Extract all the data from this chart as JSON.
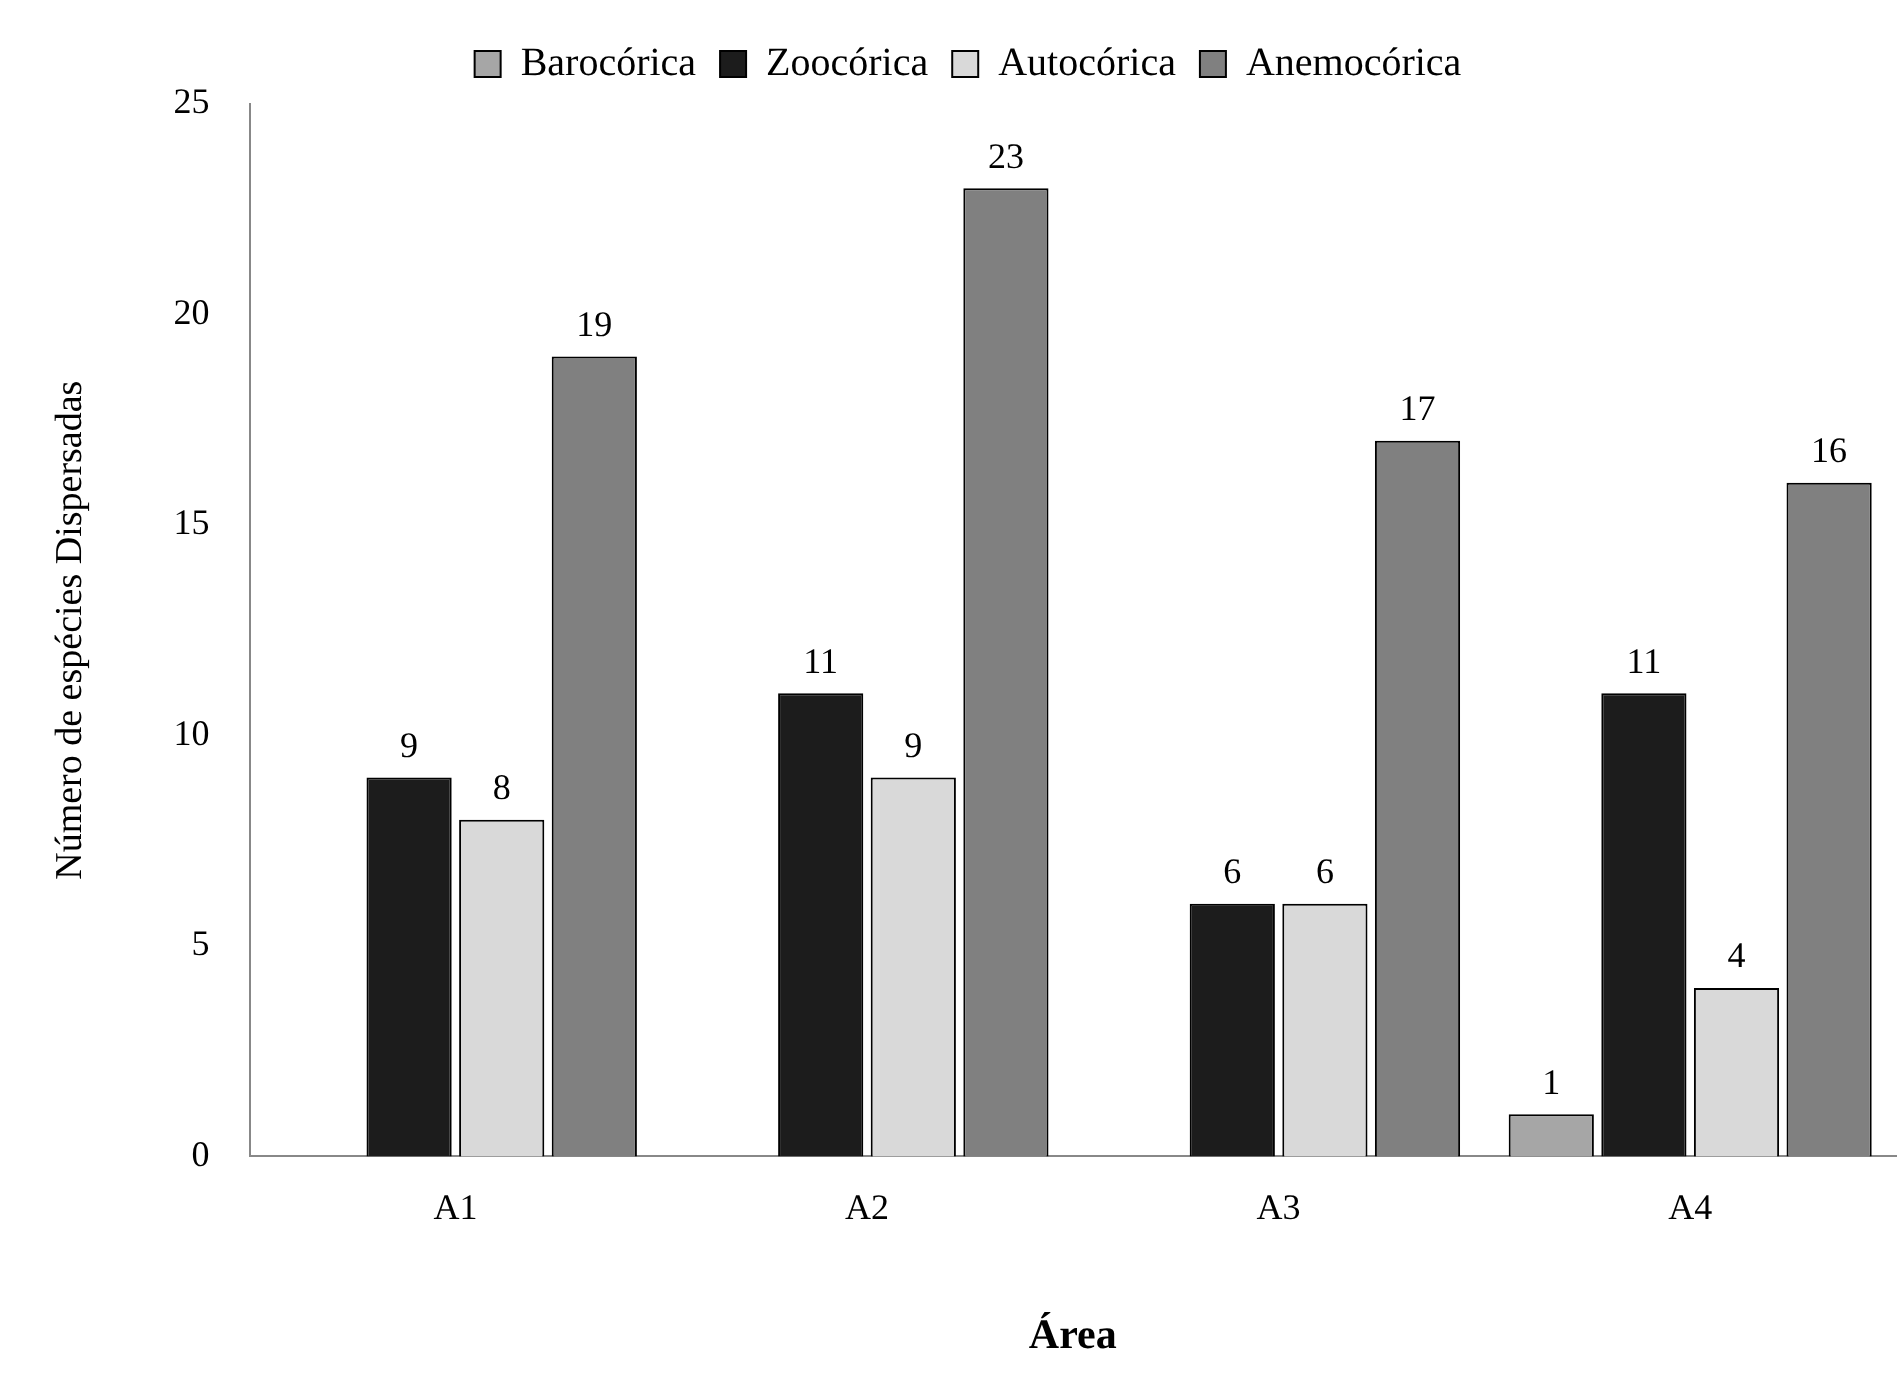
{
  "chart_data": {
    "type": "bar",
    "xlabel": "Área",
    "ylabel": "Número de espécies Dispersadas",
    "categories": [
      "A1",
      "A2",
      "A3",
      "A4"
    ],
    "series": [
      {
        "name": "Barocórica",
        "color": "#a6a6a6",
        "values": [
          null,
          null,
          null,
          1
        ]
      },
      {
        "name": "Zoocórica",
        "color": "#1c1c1c",
        "values": [
          9,
          11,
          6,
          11
        ]
      },
      {
        "name": "Autocórica",
        "color": "#d9d9d9",
        "values": [
          8,
          9,
          6,
          4
        ]
      },
      {
        "name": "Anemocórica",
        "color": "#808080",
        "values": [
          19,
          23,
          17,
          16
        ]
      }
    ],
    "ylim": [
      0,
      25
    ],
    "yticks": [
      0,
      5,
      10,
      15,
      20,
      25
    ],
    "grid": false,
    "legend": "top",
    "data_labels": true
  }
}
